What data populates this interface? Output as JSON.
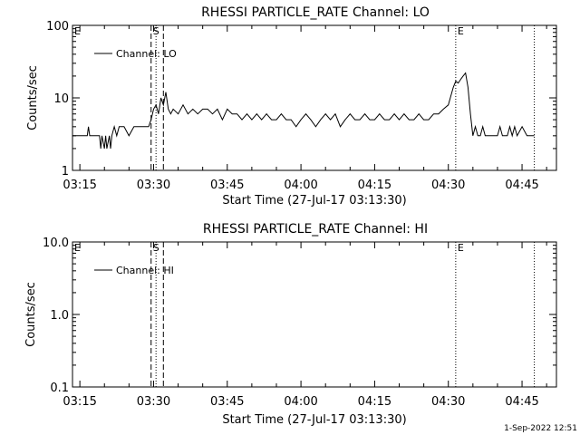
{
  "footer": "1-Sep-2022 12:51",
  "chart_data": [
    {
      "type": "line",
      "title": "RHESSI PARTICLE_RATE Channel: LO",
      "xlabel": "Start Time (27-Jul-17 03:13:30)",
      "ylabel": "Counts/sec",
      "y_scale": "log",
      "ylim": [
        1,
        100
      ],
      "xlim": [
        "03:13:30",
        "04:52:00"
      ],
      "y_ticks": [
        "1",
        "10",
        "100"
      ],
      "x_ticks": [
        "03:15",
        "03:30",
        "03:45",
        "04:00",
        "04:15",
        "04:30",
        "04:45"
      ],
      "legend": "Channel: LO",
      "legend_position": "top-left",
      "markers": [
        {
          "label": "E",
          "time": "03:13:30",
          "style": "solid"
        },
        {
          "label": "S",
          "time": "03:29:30",
          "style": "dashed"
        },
        {
          "label": "",
          "time": "03:30:30",
          "style": "dotted"
        },
        {
          "label": "",
          "time": "03:32:00",
          "style": "dashed"
        },
        {
          "label": "E",
          "time": "04:31:30",
          "style": "dotted"
        },
        {
          "label": "",
          "time": "04:47:30",
          "style": "dotted"
        }
      ],
      "series": [
        {
          "name": "Channel: LO",
          "x": [
            "03:13:30",
            "03:14:30",
            "03:15:30",
            "03:16:30",
            "03:16:45",
            "03:17:00",
            "03:18:00",
            "03:19:00",
            "03:19:15",
            "03:19:30",
            "03:20:00",
            "03:20:15",
            "03:20:30",
            "03:21:00",
            "03:21:15",
            "03:21:30",
            "03:22:00",
            "03:22:30",
            "03:23:00",
            "03:24:00",
            "03:25:00",
            "03:26:00",
            "03:27:00",
            "03:28:00",
            "03:29:00",
            "03:29:30",
            "03:30:00",
            "03:30:30",
            "03:31:00",
            "03:31:30",
            "03:32:00",
            "03:32:30",
            "03:33:00",
            "03:33:30",
            "03:34:00",
            "03:35:00",
            "03:36:00",
            "03:37:00",
            "03:38:00",
            "03:39:00",
            "03:40:00",
            "03:41:00",
            "03:42:00",
            "03:43:00",
            "03:44:00",
            "03:45:00",
            "03:46:00",
            "03:47:00",
            "03:48:00",
            "03:49:00",
            "03:50:00",
            "03:51:00",
            "03:52:00",
            "03:53:00",
            "03:54:00",
            "03:55:00",
            "03:56:00",
            "03:57:00",
            "03:58:00",
            "03:59:00",
            "04:00:00",
            "04:01:00",
            "04:02:00",
            "04:03:00",
            "04:04:00",
            "04:05:00",
            "04:06:00",
            "04:07:00",
            "04:08:00",
            "04:09:00",
            "04:10:00",
            "04:11:00",
            "04:12:00",
            "04:13:00",
            "04:14:00",
            "04:15:00",
            "04:16:00",
            "04:17:00",
            "04:18:00",
            "04:19:00",
            "04:20:00",
            "04:21:00",
            "04:22:00",
            "04:23:00",
            "04:24:00",
            "04:25:00",
            "04:26:00",
            "04:27:00",
            "04:28:00",
            "04:29:00",
            "04:30:00",
            "04:31:00",
            "04:31:30",
            "04:32:00",
            "04:32:30",
            "04:33:00",
            "04:33:30",
            "04:34:00",
            "04:34:30",
            "04:35:00",
            "04:35:30",
            "04:36:00",
            "04:36:30",
            "04:37:00",
            "04:37:30",
            "04:38:00",
            "04:39:00",
            "04:40:00",
            "04:40:30",
            "04:41:00",
            "04:42:00",
            "04:42:30",
            "04:43:00",
            "04:43:30",
            "04:44:00",
            "04:45:00",
            "04:46:00",
            "04:47:00",
            "04:47:30"
          ],
          "y": [
            3,
            3,
            3,
            3,
            4,
            3,
            3,
            3,
            2,
            3,
            2,
            3,
            2,
            3,
            2,
            3,
            4,
            3,
            4,
            4,
            3,
            4,
            4,
            4,
            4,
            5,
            7,
            8,
            6,
            10,
            8,
            12,
            7,
            6,
            7,
            6,
            8,
            6,
            7,
            6,
            7,
            7,
            6,
            7,
            5,
            7,
            6,
            6,
            5,
            6,
            5,
            6,
            5,
            6,
            5,
            5,
            6,
            5,
            5,
            4,
            5,
            6,
            5,
            4,
            5,
            6,
            5,
            6,
            4,
            5,
            6,
            5,
            5,
            6,
            5,
            5,
            6,
            5,
            5,
            6,
            5,
            6,
            5,
            5,
            6,
            5,
            5,
            6,
            6,
            7,
            8,
            14,
            17,
            16,
            18,
            20,
            22,
            14,
            6,
            3,
            4,
            3,
            3,
            4,
            3,
            3,
            3,
            3,
            4,
            3,
            3,
            4,
            3,
            4,
            3,
            4,
            3,
            3,
            3
          ]
        }
      ]
    },
    {
      "type": "line",
      "title": "RHESSI PARTICLE_RATE Channel: HI",
      "xlabel": "Start Time (27-Jul-17 03:13:30)",
      "ylabel": "Counts/sec",
      "y_scale": "log",
      "ylim": [
        0.1,
        10
      ],
      "xlim": [
        "03:13:30",
        "04:52:00"
      ],
      "y_ticks": [
        "0.1",
        "1.0",
        "10.0"
      ],
      "x_ticks": [
        "03:15",
        "03:30",
        "03:45",
        "04:00",
        "04:15",
        "04:30",
        "04:45"
      ],
      "legend": "Channel: HI",
      "legend_position": "top-left",
      "markers": [
        {
          "label": "E",
          "time": "03:13:30",
          "style": "solid"
        },
        {
          "label": "S",
          "time": "03:29:30",
          "style": "dashed"
        },
        {
          "label": "",
          "time": "03:30:30",
          "style": "dotted"
        },
        {
          "label": "",
          "time": "03:32:00",
          "style": "dashed"
        },
        {
          "label": "E",
          "time": "04:31:30",
          "style": "dotted"
        },
        {
          "label": "",
          "time": "04:47:30",
          "style": "dotted"
        }
      ],
      "series": [
        {
          "name": "Channel: HI",
          "x": [],
          "y": []
        }
      ]
    }
  ]
}
